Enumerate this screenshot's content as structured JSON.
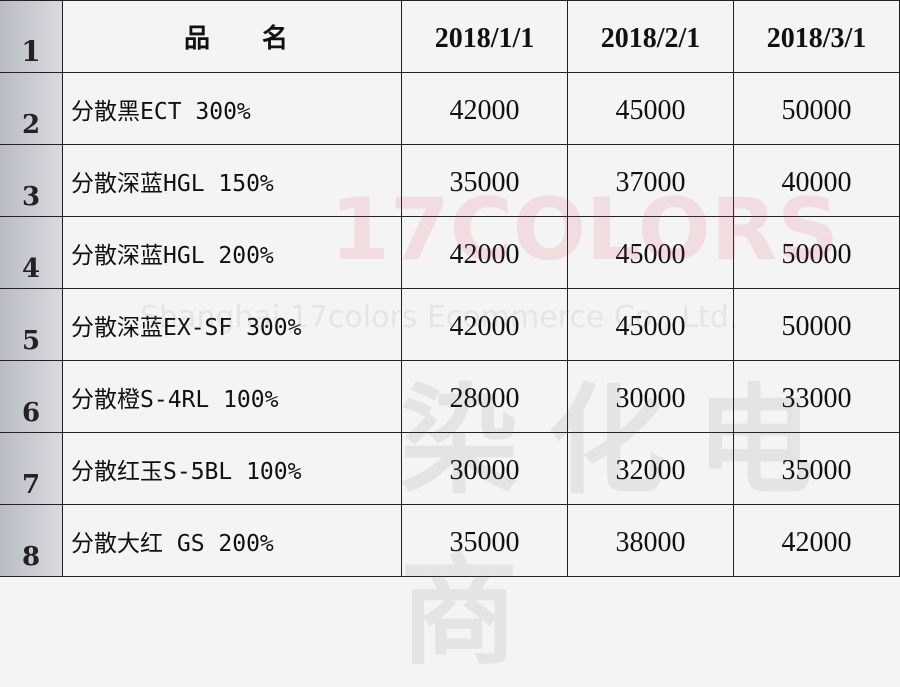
{
  "columns": [
    "品　　名",
    "2018/1/1",
    "2018/2/1",
    "2018/3/1"
  ],
  "rows": [
    {
      "num": "1"
    },
    {
      "num": "2",
      "name": "分散黑ECT 300%",
      "values": [
        "42000",
        "45000",
        "50000"
      ]
    },
    {
      "num": "3",
      "name": "分散深蓝HGL 150%",
      "values": [
        "35000",
        "37000",
        "40000"
      ]
    },
    {
      "num": "4",
      "name": "分散深蓝HGL 200%",
      "values": [
        "42000",
        "45000",
        "50000"
      ]
    },
    {
      "num": "5",
      "name": "分散深蓝EX-SF 300%",
      "values": [
        "42000",
        "45000",
        "50000"
      ]
    },
    {
      "num": "6",
      "name": "分散橙S-4RL 100%",
      "values": [
        "28000",
        "30000",
        "33000"
      ]
    },
    {
      "num": "7",
      "name": "分散红玉S-5BL 100%",
      "values": [
        "30000",
        "32000",
        "35000"
      ]
    },
    {
      "num": "8",
      "name": "分散大红 GS 200%",
      "values": [
        "35000",
        "38000",
        "42000"
      ]
    }
  ],
  "watermark": {
    "logo": "17COLORS",
    "company": "Shanghai 17colors Ecommerce Co., Ltd.",
    "chinese": "染化电商"
  }
}
